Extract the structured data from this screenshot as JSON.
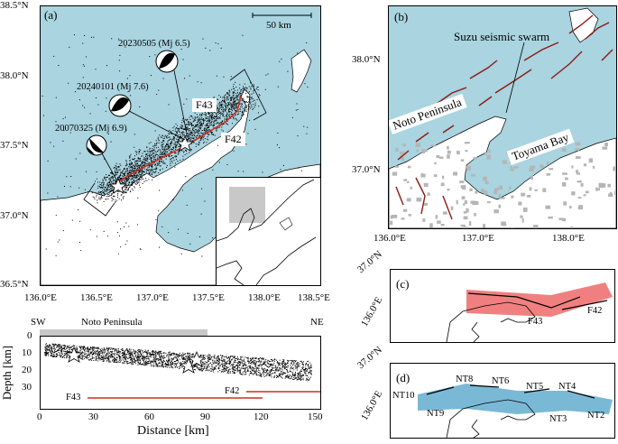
{
  "panel_a": {
    "label": "(a)",
    "scalebar": "50 km",
    "lat_ticks": [
      "38.5°N",
      "38.0°N",
      "37.5°N",
      "37.0°N",
      "36.5°N"
    ],
    "lon_ticks": [
      "136.0°E",
      "136.5°E",
      "137.0°E",
      "137.5°E",
      "138.0°E",
      "138.5°E"
    ],
    "events": [
      {
        "label": "20230505 (Mj 6.5)"
      },
      {
        "label": "20240101 (Mj 7.6)"
      },
      {
        "label": "20070325 (Mj 6.9)"
      }
    ],
    "faults": [
      "F43",
      "F42"
    ]
  },
  "panel_b": {
    "label": "(b)",
    "swarm": "Suzu seismic swarm",
    "peninsula": "Noto Peninsula",
    "bay": "Toyama Bay",
    "lat_ticks": [
      "38.0°N",
      "37.0°N"
    ],
    "lon_ticks": [
      "136.0°E",
      "137.0°E",
      "138.0°E"
    ]
  },
  "panel_c": {
    "label": "(c)",
    "lat": "37.0°N",
    "lon": "136.0°E",
    "faults": [
      "F43",
      "F42"
    ]
  },
  "panel_d": {
    "label": "(d)",
    "lat": "37.0°N",
    "lon": "136.0°E",
    "segments": [
      "NT10",
      "NT9",
      "NT8",
      "NT6",
      "NT5",
      "NT4",
      "NT3",
      "NT2"
    ]
  },
  "section": {
    "left_end": "SW",
    "right_end": "NE",
    "peninsula_bar": "Noto Peninsula",
    "ylabel": "Depth [km]",
    "xlabel": "Distance [km]",
    "y_ticks": [
      "0",
      "10",
      "20",
      "30"
    ],
    "x_ticks": [
      "0",
      "30",
      "60",
      "90",
      "120",
      "150"
    ],
    "faults": [
      "F43",
      "F42"
    ]
  },
  "colors": {
    "sea": "#a9d4e0",
    "fault_red": "#cc2f1f",
    "fault_dark": "#8c1a12",
    "pink": "#f08080",
    "blue": "#7ab9d6"
  }
}
